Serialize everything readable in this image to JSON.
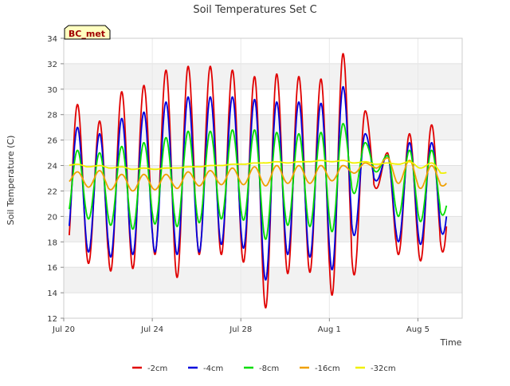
{
  "chart_data": {
    "type": "line",
    "title": "Soil Temperatures Set C",
    "xlabel": "Time",
    "ylabel": "Soil Temperature (C)",
    "badge": "BC_met",
    "x_ticks": [
      {
        "day": 0,
        "label": "Jul 20"
      },
      {
        "day": 4,
        "label": "Jul 24"
      },
      {
        "day": 8,
        "label": "Jul 28"
      },
      {
        "day": 12,
        "label": "Aug 1"
      },
      {
        "day": 16,
        "label": "Aug 5"
      }
    ],
    "x_range_days": [
      0,
      18
    ],
    "x_unit": "days since Jul 20",
    "ylim": [
      12,
      34
    ],
    "y_ticks": [
      12,
      14,
      16,
      18,
      20,
      22,
      24,
      26,
      28,
      30,
      32,
      34
    ],
    "grid": "horizontal bands",
    "legend_position": "bottom",
    "series": [
      {
        "name": "-2cm",
        "color": "#e00000",
        "sample_days": [
          0.25,
          17.3
        ],
        "daily_max": [
          28.8,
          27.5,
          29.8,
          30.3,
          31.5,
          31.8,
          31.8,
          31.5,
          31.0,
          31.2,
          31.0,
          30.8,
          32.8,
          28.3,
          25.0,
          26.5,
          27.2,
          25.0
        ],
        "daily_min": [
          16.6,
          16.3,
          15.7,
          15.9,
          17.0,
          15.2,
          17.0,
          17.0,
          16.4,
          12.8,
          15.5,
          15.6,
          13.8,
          15.4,
          22.2,
          17.0,
          16.5,
          17.2
        ]
      },
      {
        "name": "-4cm",
        "color": "#0000dd",
        "sample_days": [
          0.25,
          17.3
        ],
        "daily_max": [
          27.0,
          26.5,
          27.7,
          28.2,
          29.0,
          29.4,
          29.4,
          29.4,
          29.2,
          29.0,
          29.0,
          28.9,
          30.2,
          26.5,
          24.8,
          25.8,
          25.8,
          24.0
        ],
        "daily_min": [
          17.8,
          17.2,
          16.8,
          17.0,
          17.2,
          17.0,
          17.2,
          17.8,
          17.5,
          15.0,
          17.0,
          16.8,
          15.8,
          18.5,
          22.8,
          18.0,
          17.8,
          18.6
        ]
      },
      {
        "name": "-8cm",
        "color": "#00dd00",
        "sample_days": [
          0.25,
          17.3
        ],
        "daily_max": [
          25.2,
          25.0,
          25.5,
          25.8,
          26.2,
          26.7,
          26.7,
          26.8,
          26.8,
          26.6,
          26.5,
          26.6,
          27.3,
          25.8,
          24.8,
          25.2,
          25.2,
          23.0
        ],
        "daily_min": [
          19.7,
          19.8,
          19.3,
          19.0,
          19.4,
          19.2,
          19.5,
          19.8,
          19.7,
          18.2,
          19.3,
          19.2,
          18.8,
          21.8,
          23.5,
          20.0,
          19.6,
          20.1
        ]
      },
      {
        "name": "-16cm",
        "color": "#f0a000",
        "sample_days": [
          0.25,
          17.3
        ],
        "daily_max": [
          23.5,
          23.6,
          23.3,
          23.3,
          23.3,
          23.5,
          23.6,
          23.8,
          23.9,
          24.0,
          24.0,
          24.0,
          24.0,
          24.2,
          24.6,
          24.4,
          24.0,
          23.2
        ],
        "daily_min": [
          22.6,
          22.3,
          22.1,
          22.0,
          22.1,
          22.2,
          22.4,
          22.5,
          22.5,
          22.4,
          22.6,
          22.6,
          22.8,
          23.4,
          23.8,
          22.6,
          22.2,
          22.4
        ]
      },
      {
        "name": "-32cm",
        "color": "#f0f000",
        "sample_days": [
          0.25,
          17.3
        ],
        "daily_max": [
          24.1,
          24.0,
          23.9,
          23.8,
          23.8,
          23.9,
          24.0,
          24.1,
          24.2,
          24.3,
          24.3,
          24.4,
          24.4,
          24.3,
          24.2,
          24.3,
          24.2,
          23.6
        ],
        "daily_min": [
          24.0,
          23.9,
          23.8,
          23.7,
          23.7,
          23.8,
          23.9,
          24.0,
          24.1,
          24.2,
          24.2,
          24.3,
          24.3,
          24.2,
          24.1,
          24.1,
          23.8,
          23.4
        ]
      }
    ]
  }
}
